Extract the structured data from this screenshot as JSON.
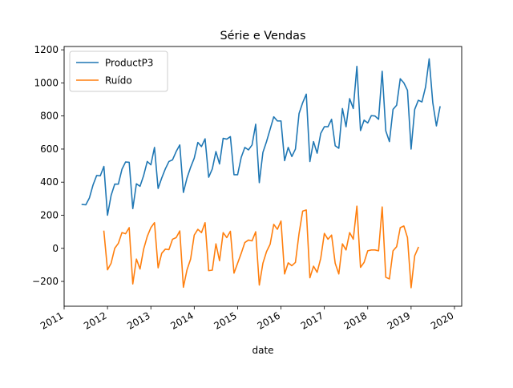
{
  "chart_data": {
    "type": "line",
    "title": "Série e Vendas",
    "xlabel": "date",
    "ylabel": "",
    "x_start": "2011-06",
    "x_frequency": "monthly",
    "xlim": [
      "2011-01",
      "2020-03"
    ],
    "ylim": [
      -350,
      1220
    ],
    "x_ticks": [
      "2011",
      "2012",
      "2013",
      "2014",
      "2015",
      "2016",
      "2017",
      "2018",
      "2019",
      "2020"
    ],
    "y_ticks": [
      -200,
      0,
      200,
      400,
      600,
      800,
      1000,
      1200
    ],
    "legend_position": "top-left",
    "grid": false,
    "series": [
      {
        "name": "ProductP3",
        "color": "#1f77b4",
        "start": "2011-06",
        "values": [
          265,
          263,
          305,
          383,
          440,
          438,
          495,
          200,
          320,
          388,
          388,
          478,
          522,
          520,
          240,
          390,
          375,
          440,
          525,
          505,
          610,
          362,
          425,
          480,
          525,
          535,
          585,
          625,
          338,
          425,
          490,
          545,
          640,
          615,
          662,
          430,
          480,
          585,
          510,
          665,
          660,
          675,
          445,
          445,
          550,
          610,
          595,
          625,
          750,
          397,
          580,
          645,
          720,
          795,
          770,
          770,
          530,
          610,
          555,
          600,
          815,
          880,
          932,
          525,
          645,
          575,
          695,
          735,
          735,
          780,
          620,
          605,
          845,
          735,
          905,
          845,
          1100,
          712,
          775,
          758,
          802,
          800,
          780,
          1070,
          710,
          645,
          840,
          865,
          1025,
          1000,
          955,
          600,
          840,
          895,
          885,
          975,
          1145,
          880,
          740,
          855
        ]
      },
      {
        "name": "Ruído",
        "color": "#ff7f0e",
        "start": "2011-12",
        "values": [
          103,
          -130,
          -90,
          0,
          30,
          95,
          88,
          125,
          -215,
          -65,
          -125,
          -5,
          72,
          125,
          155,
          -118,
          -30,
          -5,
          -8,
          55,
          65,
          105,
          -235,
          -130,
          -65,
          80,
          115,
          95,
          155,
          -135,
          -132,
          27,
          -75,
          95,
          65,
          103,
          -150,
          -90,
          -30,
          35,
          50,
          45,
          100,
          -222,
          -90,
          -20,
          25,
          145,
          115,
          165,
          -155,
          -88,
          -105,
          -85,
          90,
          225,
          232,
          -178,
          -108,
          -145,
          -60,
          90,
          55,
          80,
          -90,
          -155,
          27,
          -10,
          95,
          55,
          255,
          -115,
          -85,
          -15,
          -10,
          -10,
          -15,
          250,
          -175,
          -185,
          -15,
          10,
          125,
          135,
          65,
          -238,
          -45,
          5
        ]
      }
    ]
  }
}
